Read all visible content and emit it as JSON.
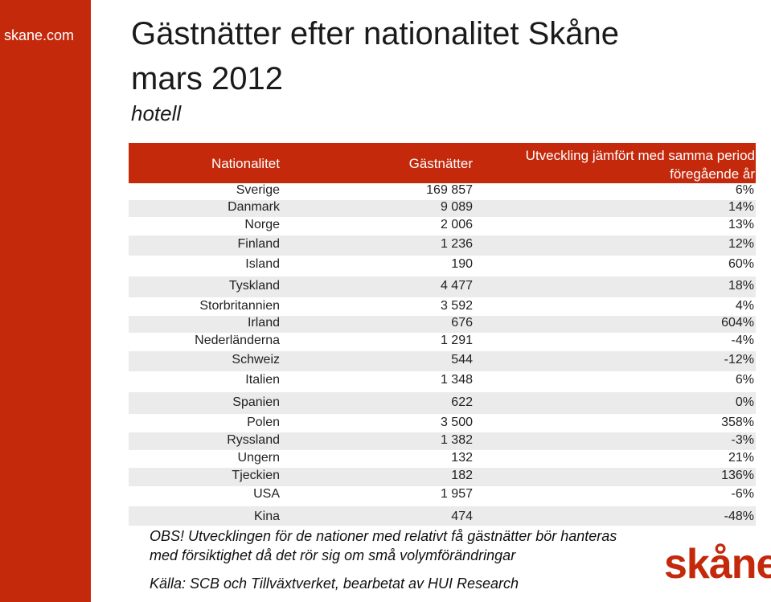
{
  "sidebar": {
    "site": "skane.com"
  },
  "header": {
    "title_line1": "Gästnätter efter nationalitet Skåne",
    "title_line2": "mars 2012",
    "subtitle": "hotell"
  },
  "table": {
    "columns": [
      "Nationalitet",
      "Gästnätter",
      "Utveckling jämfört med samma period föregående år"
    ],
    "rows": [
      [
        "Sverige",
        "169 857",
        "6%"
      ],
      [
        "Danmark",
        "9 089",
        "14%"
      ],
      [
        "Norge",
        "2 006",
        "13%"
      ],
      [
        "Finland",
        "1 236",
        "12%"
      ],
      [
        "Island",
        "190",
        "60%"
      ],
      [
        "Tyskland",
        "4 477",
        "18%"
      ],
      [
        "Storbritannien",
        "3 592",
        "4%"
      ],
      [
        "Irland",
        "676",
        "604%"
      ],
      [
        "Nederländerna",
        "1 291",
        "-4%"
      ],
      [
        "Schweiz",
        "544",
        "-12%"
      ],
      [
        "Italien",
        "1 348",
        "6%"
      ],
      [
        "Spanien",
        "622",
        "0%"
      ],
      [
        "Polen",
        "3 500",
        "358%"
      ],
      [
        "Ryssland",
        "1 382",
        "-3%"
      ],
      [
        "Ungern",
        "132",
        "21%"
      ],
      [
        "Tjeckien",
        "182",
        "136%"
      ],
      [
        "USA",
        "1 957",
        "-6%"
      ],
      [
        "Kina",
        "474",
        "-48%"
      ]
    ]
  },
  "notes": {
    "obs_line1": "OBS! Utvecklingen för de nationer med relativt få gästnätter bör hanteras",
    "obs_line2": "med försiktighet då det rör sig om små volymförändringar",
    "source": "Källa: SCB och Tillväxtverket, bearbetat av HUI Research"
  },
  "logo": {
    "text": "skåne"
  }
}
